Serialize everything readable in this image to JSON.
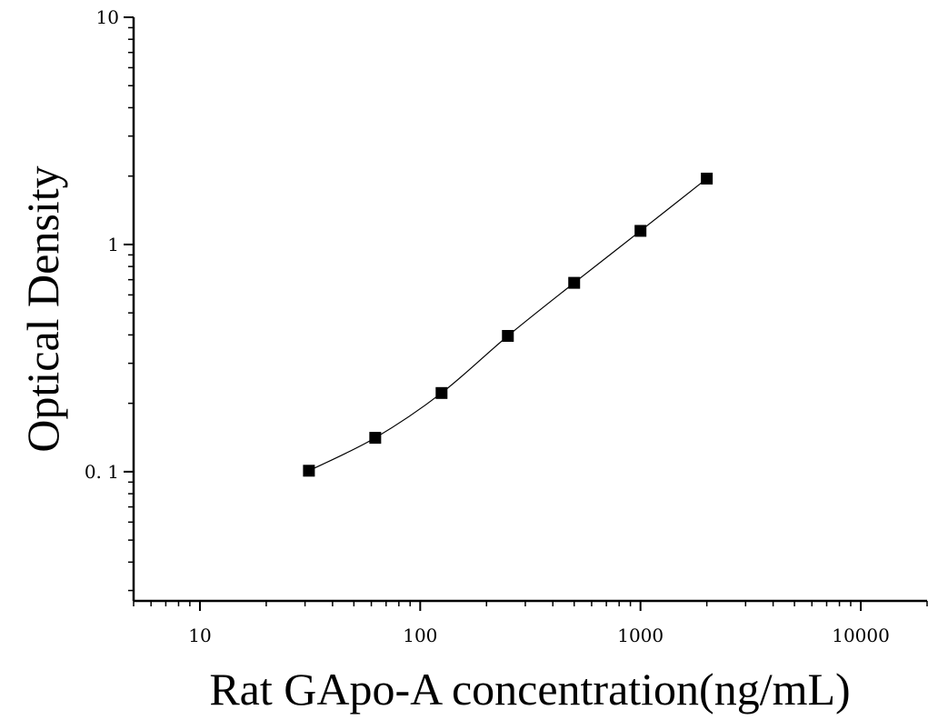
{
  "chart_data": {
    "type": "scatter",
    "title": "",
    "xlabel": "Rat GApo-A concentration(ng/mL)",
    "ylabel": "Optical Density",
    "x_scale": "log",
    "y_scale": "log",
    "xlim": [
      5,
      20000
    ],
    "ylim": [
      0.027,
      10
    ],
    "x_ticks": [
      {
        "value": 10,
        "label": "10"
      },
      {
        "value": 100,
        "label": "100"
      },
      {
        "value": 1000,
        "label": "1000"
      },
      {
        "value": 10000,
        "label": "10000"
      }
    ],
    "y_ticks": [
      {
        "value": 0.1,
        "label": "0. 1"
      },
      {
        "value": 1,
        "label": "1"
      },
      {
        "value": 10,
        "label": "10"
      }
    ],
    "grid": false,
    "legend": "none",
    "fit_line": true,
    "marker": "square",
    "color": "#000000",
    "series": [
      {
        "x": [
          31.25,
          62.5,
          125,
          250,
          500,
          1000,
          2000
        ],
        "y": [
          0.101,
          0.141,
          0.222,
          0.396,
          0.678,
          1.148,
          1.95
        ]
      }
    ]
  }
}
